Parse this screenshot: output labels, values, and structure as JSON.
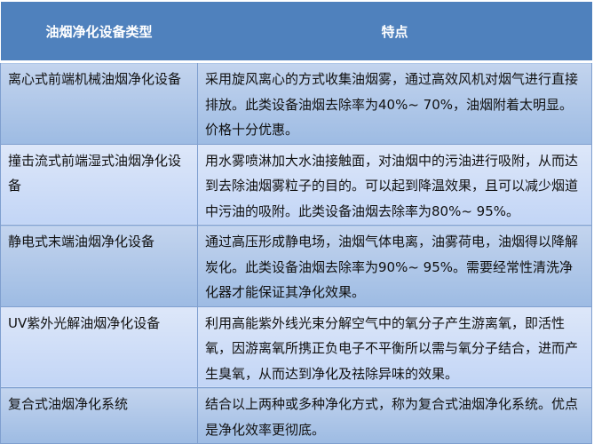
{
  "table": {
    "headers": [
      "油烟净化设备类型",
      "特点"
    ],
    "rows": [
      {
        "type": "离心式前端机械油烟净化设备",
        "feature": "采用旋风离心的方式收集油烟雾，通过高效风机对烟气进行直接排放。此类设备油烟去除率为40%~ 70%，油烟附着太明显。价格十分优惠。"
      },
      {
        "type": "撞击流式前端湿式油烟净化设备",
        "feature": "用水雾喷淋加大水油接触面，对油烟中的污油进行吸附，从而达到去除油烟雾粒子的目的。可以起到降温效果，且可以减少烟道中污油的吸附。此类设备油烟去除率为80%~ 95%。"
      },
      {
        "type": "静电式末端油烟净化设备",
        "feature": "通过高压形成静电场，油烟气体电离，油雾荷电，油烟得以降解炭化。此类设备油烟去除率为90%~ 95%。需要经常性清洗净化器才能保证其净化效果。"
      },
      {
        "type": "UV紫外光解油烟净化设备",
        "feature": "利用高能紫外线光束分解空气中的氧分子产生游离氧，即活性氧，因游离氧所携正负电子不平衡所以需与氧分子结合，进而产生臭氧，从而达到净化及祛除异味的效果。"
      },
      {
        "type": "复合式油烟净化系统",
        "feature": "结合以上两种或多种净化方式，称为复合式油烟净化系统。优点是净化效率更彻底。"
      }
    ]
  },
  "colors": {
    "header": "#4f81bd",
    "row_dark": "#9dbbe3",
    "row_light": "#c2d5f6"
  }
}
